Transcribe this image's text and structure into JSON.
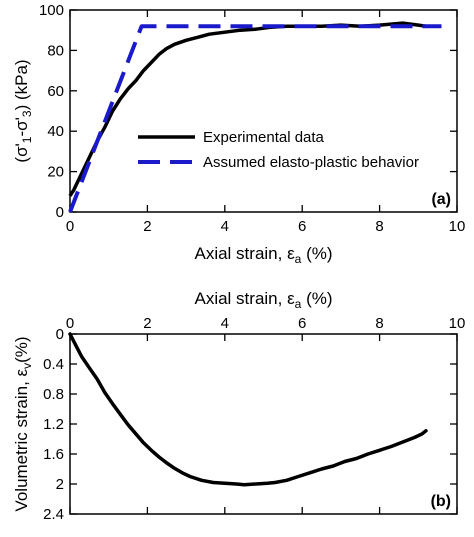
{
  "chart_data": [
    {
      "type": "line",
      "panel_label": "(a)",
      "xlabel": "Axial strain, ε",
      "xlabel_sub": "a",
      "xlabel_unit": " (%)",
      "ylabel": "(σ'1-σ'3) (kPa)",
      "ylabel_parts": {
        "open": "(σ'",
        "s1": "1",
        "mid": "-σ'",
        "s3": "3",
        "close": ") (kPa)"
      },
      "xlim": [
        0,
        10
      ],
      "ylim": [
        0,
        100
      ],
      "xticks": [
        "0",
        "2",
        "4",
        "6",
        "8",
        "10"
      ],
      "yticks": [
        "0",
        "20",
        "40",
        "60",
        "80",
        "100"
      ],
      "grid": false,
      "legend_position": "center-right",
      "series": [
        {
          "name": "Experimental data",
          "style": "solid",
          "color": "#000000",
          "x": [
            0,
            0.1,
            0.2,
            0.35,
            0.5,
            0.7,
            0.9,
            1.1,
            1.3,
            1.5,
            1.7,
            1.9,
            2.1,
            2.3,
            2.5,
            2.7,
            3.0,
            3.3,
            3.6,
            4.0,
            4.4,
            4.8,
            5.2,
            5.6,
            6.0,
            6.5,
            7.0,
            7.5,
            8.0,
            8.3,
            8.6,
            8.8,
            9.0,
            9.2,
            9.5
          ],
          "y": [
            8,
            11,
            15,
            21,
            27,
            35,
            42,
            50,
            56,
            61,
            65,
            70,
            74,
            78,
            81,
            83,
            85,
            86.5,
            88,
            89,
            90,
            90.5,
            91.5,
            92,
            92,
            92,
            92.5,
            92,
            92.5,
            93,
            93.5,
            93,
            92.5,
            92,
            92
          ]
        },
        {
          "name": "Assumed elasto-plastic behavior",
          "style": "dashed",
          "color": "#1a1acc",
          "x": [
            0,
            1.85,
            9.6
          ],
          "y": [
            0,
            92,
            92
          ]
        }
      ]
    },
    {
      "type": "line",
      "panel_label": "(b)",
      "xlabel": "Axial strain, ε",
      "xlabel_sub": "a",
      "xlabel_unit": " (%)",
      "xaxis_position": "top",
      "ylabel_parts": {
        "open": "Volumetric strain, ε",
        "sub": "v",
        "close": "(%)"
      },
      "xlim": [
        0,
        10
      ],
      "ylim": [
        0,
        2.4
      ],
      "y_inverted": true,
      "xticks": [
        "0",
        "2",
        "4",
        "6",
        "8",
        "10"
      ],
      "yticks": [
        "0",
        "0.4",
        "0.8",
        "1.2",
        "1.6",
        "2",
        "2.4"
      ],
      "grid": false,
      "series": [
        {
          "color": "#000000",
          "x": [
            0,
            0.15,
            0.3,
            0.5,
            0.7,
            0.9,
            1.1,
            1.3,
            1.5,
            1.7,
            1.9,
            2.1,
            2.3,
            2.5,
            2.7,
            2.9,
            3.1,
            3.4,
            3.7,
            4.0,
            4.3,
            4.5,
            4.8,
            5.1,
            5.3,
            5.6,
            5.9,
            6.2,
            6.5,
            6.8,
            7.1,
            7.4,
            7.7,
            8.0,
            8.3,
            8.6,
            8.9,
            9.1,
            9.2
          ],
          "y": [
            0,
            0.15,
            0.3,
            0.45,
            0.6,
            0.78,
            0.93,
            1.07,
            1.21,
            1.33,
            1.45,
            1.55,
            1.64,
            1.72,
            1.79,
            1.85,
            1.9,
            1.95,
            1.98,
            1.99,
            2.0,
            2.01,
            2.0,
            1.99,
            1.98,
            1.95,
            1.9,
            1.85,
            1.8,
            1.76,
            1.7,
            1.66,
            1.6,
            1.55,
            1.5,
            1.44,
            1.38,
            1.33,
            1.29
          ]
        }
      ]
    }
  ]
}
